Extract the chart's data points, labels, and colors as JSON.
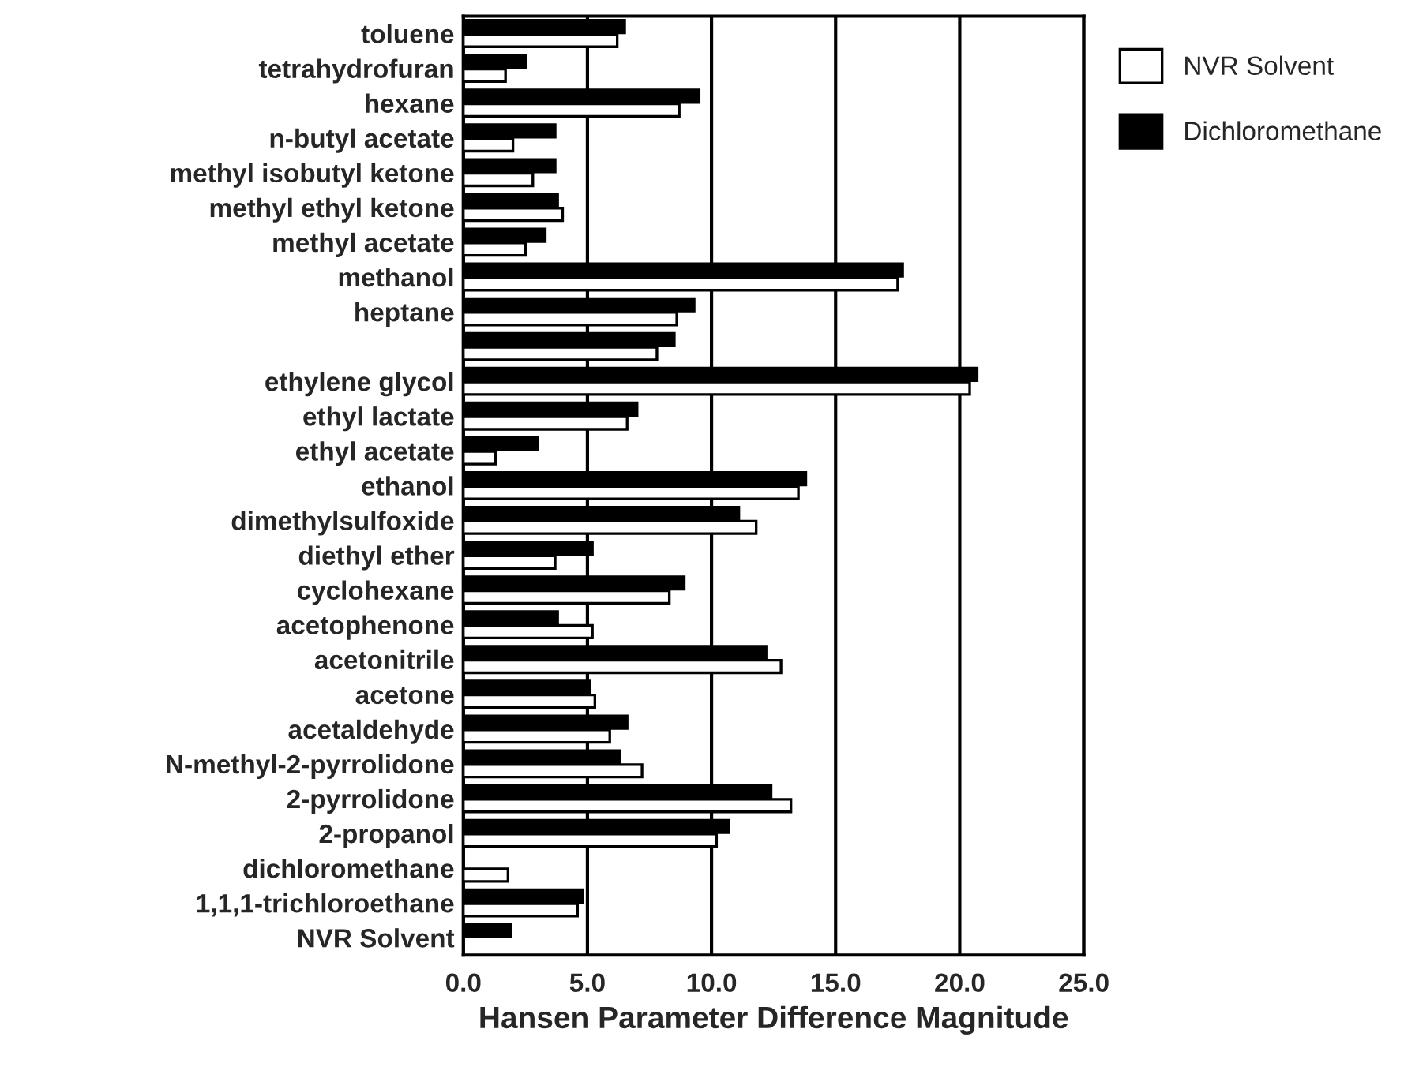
{
  "chart_data": {
    "type": "bar",
    "orientation": "horizontal",
    "xlabel": "Hansen Parameter Difference Magnitude",
    "categories": [
      "toluene",
      "tetrahydrofuran",
      "hexane",
      "n-butyl acetate",
      "methyl isobutyl ketone",
      "methyl ethyl ketone",
      "methyl acetate",
      "methanol",
      "heptane",
      null,
      "ethylene glycol",
      "ethyl lactate",
      "ethyl acetate",
      "ethanol",
      "dimethylsulfoxide",
      "diethyl ether",
      "cyclohexane",
      "acetophenone",
      "acetonitrile",
      "acetone",
      "acetaldehyde",
      "N-methyl-2-pyrrolidone",
      "2-pyrrolidone",
      "2-propanol",
      "dichloromethane",
      "1,1,1-trichloroethane",
      "NVR Solvent"
    ],
    "series": [
      {
        "name": "NVR Solvent",
        "color": "#ffffff",
        "values": [
          6.2,
          1.7,
          8.7,
          2.0,
          2.8,
          4.0,
          2.5,
          17.5,
          8.6,
          7.8,
          20.4,
          6.6,
          1.3,
          13.5,
          11.8,
          3.7,
          8.3,
          5.2,
          12.8,
          5.3,
          5.9,
          7.2,
          13.2,
          10.2,
          1.8,
          4.6,
          null
        ]
      },
      {
        "name": "Dichloromethane",
        "color": "#000000",
        "values": [
          6.5,
          2.5,
          9.5,
          3.7,
          3.7,
          3.8,
          3.3,
          17.7,
          9.3,
          8.5,
          20.7,
          7.0,
          3.0,
          13.8,
          11.1,
          5.2,
          8.9,
          3.8,
          12.2,
          5.1,
          6.6,
          6.3,
          12.4,
          10.7,
          null,
          4.8,
          1.9
        ]
      }
    ],
    "xlim": [
      0,
      25
    ],
    "xticks": [
      {
        "value": 0,
        "label": "0.0"
      },
      {
        "value": 5,
        "label": "5.0"
      },
      {
        "value": 10,
        "label": "10.0"
      },
      {
        "value": 15,
        "label": "15.0"
      },
      {
        "value": 20,
        "label": "20.0"
      },
      {
        "value": 25,
        "label": "25.0"
      }
    ],
    "grid": "x",
    "legend": "top right"
  }
}
